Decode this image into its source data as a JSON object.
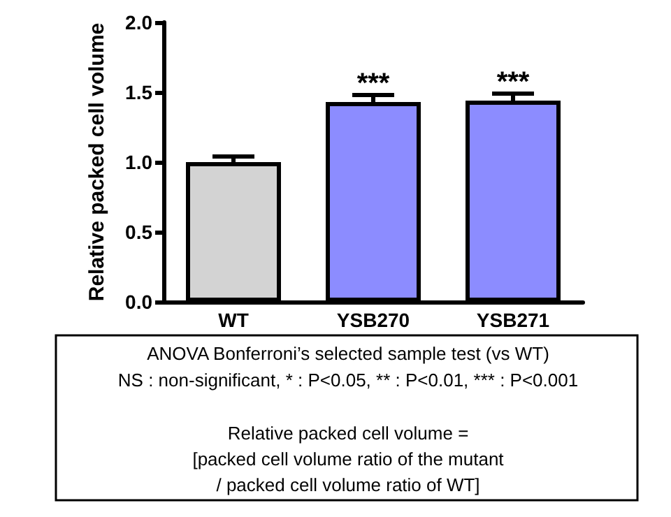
{
  "chart_data": {
    "type": "bar",
    "ylabel": "Relative packed cell volume",
    "categories": [
      "WT",
      "YSB270",
      "YSB271"
    ],
    "values": [
      1.0,
      1.43,
      1.44
    ],
    "colors": [
      "#d3d3d3",
      "#8c8cff",
      "#8c8cff"
    ],
    "errors": [
      0.04,
      0.05,
      0.05
    ],
    "ylim": [
      0,
      2
    ],
    "yticks": [
      {
        "value": 0,
        "label": "0.0"
      },
      {
        "value": 0.5,
        "label": "0.5"
      },
      {
        "value": 1,
        "label": "1.0"
      },
      {
        "value": 1.5,
        "label": "1.5"
      },
      {
        "value": 2,
        "label": "2.0"
      }
    ],
    "annotations": [
      {
        "text": "***",
        "x": "YSB270",
        "y": 1.48
      },
      {
        "text": "***",
        "x": "YSB271",
        "y": 1.49
      },
      "ANOVA Bonferroni’s selected sample test (vs WT)",
      "NS : non-significant, * : P<0.05, ** : P<0.01, *** : P<0.001",
      "Relative packed cell volume =",
      "[packed cell volume ratio of the mutant",
      "/ packed cell volume ratio of WT]"
    ]
  }
}
